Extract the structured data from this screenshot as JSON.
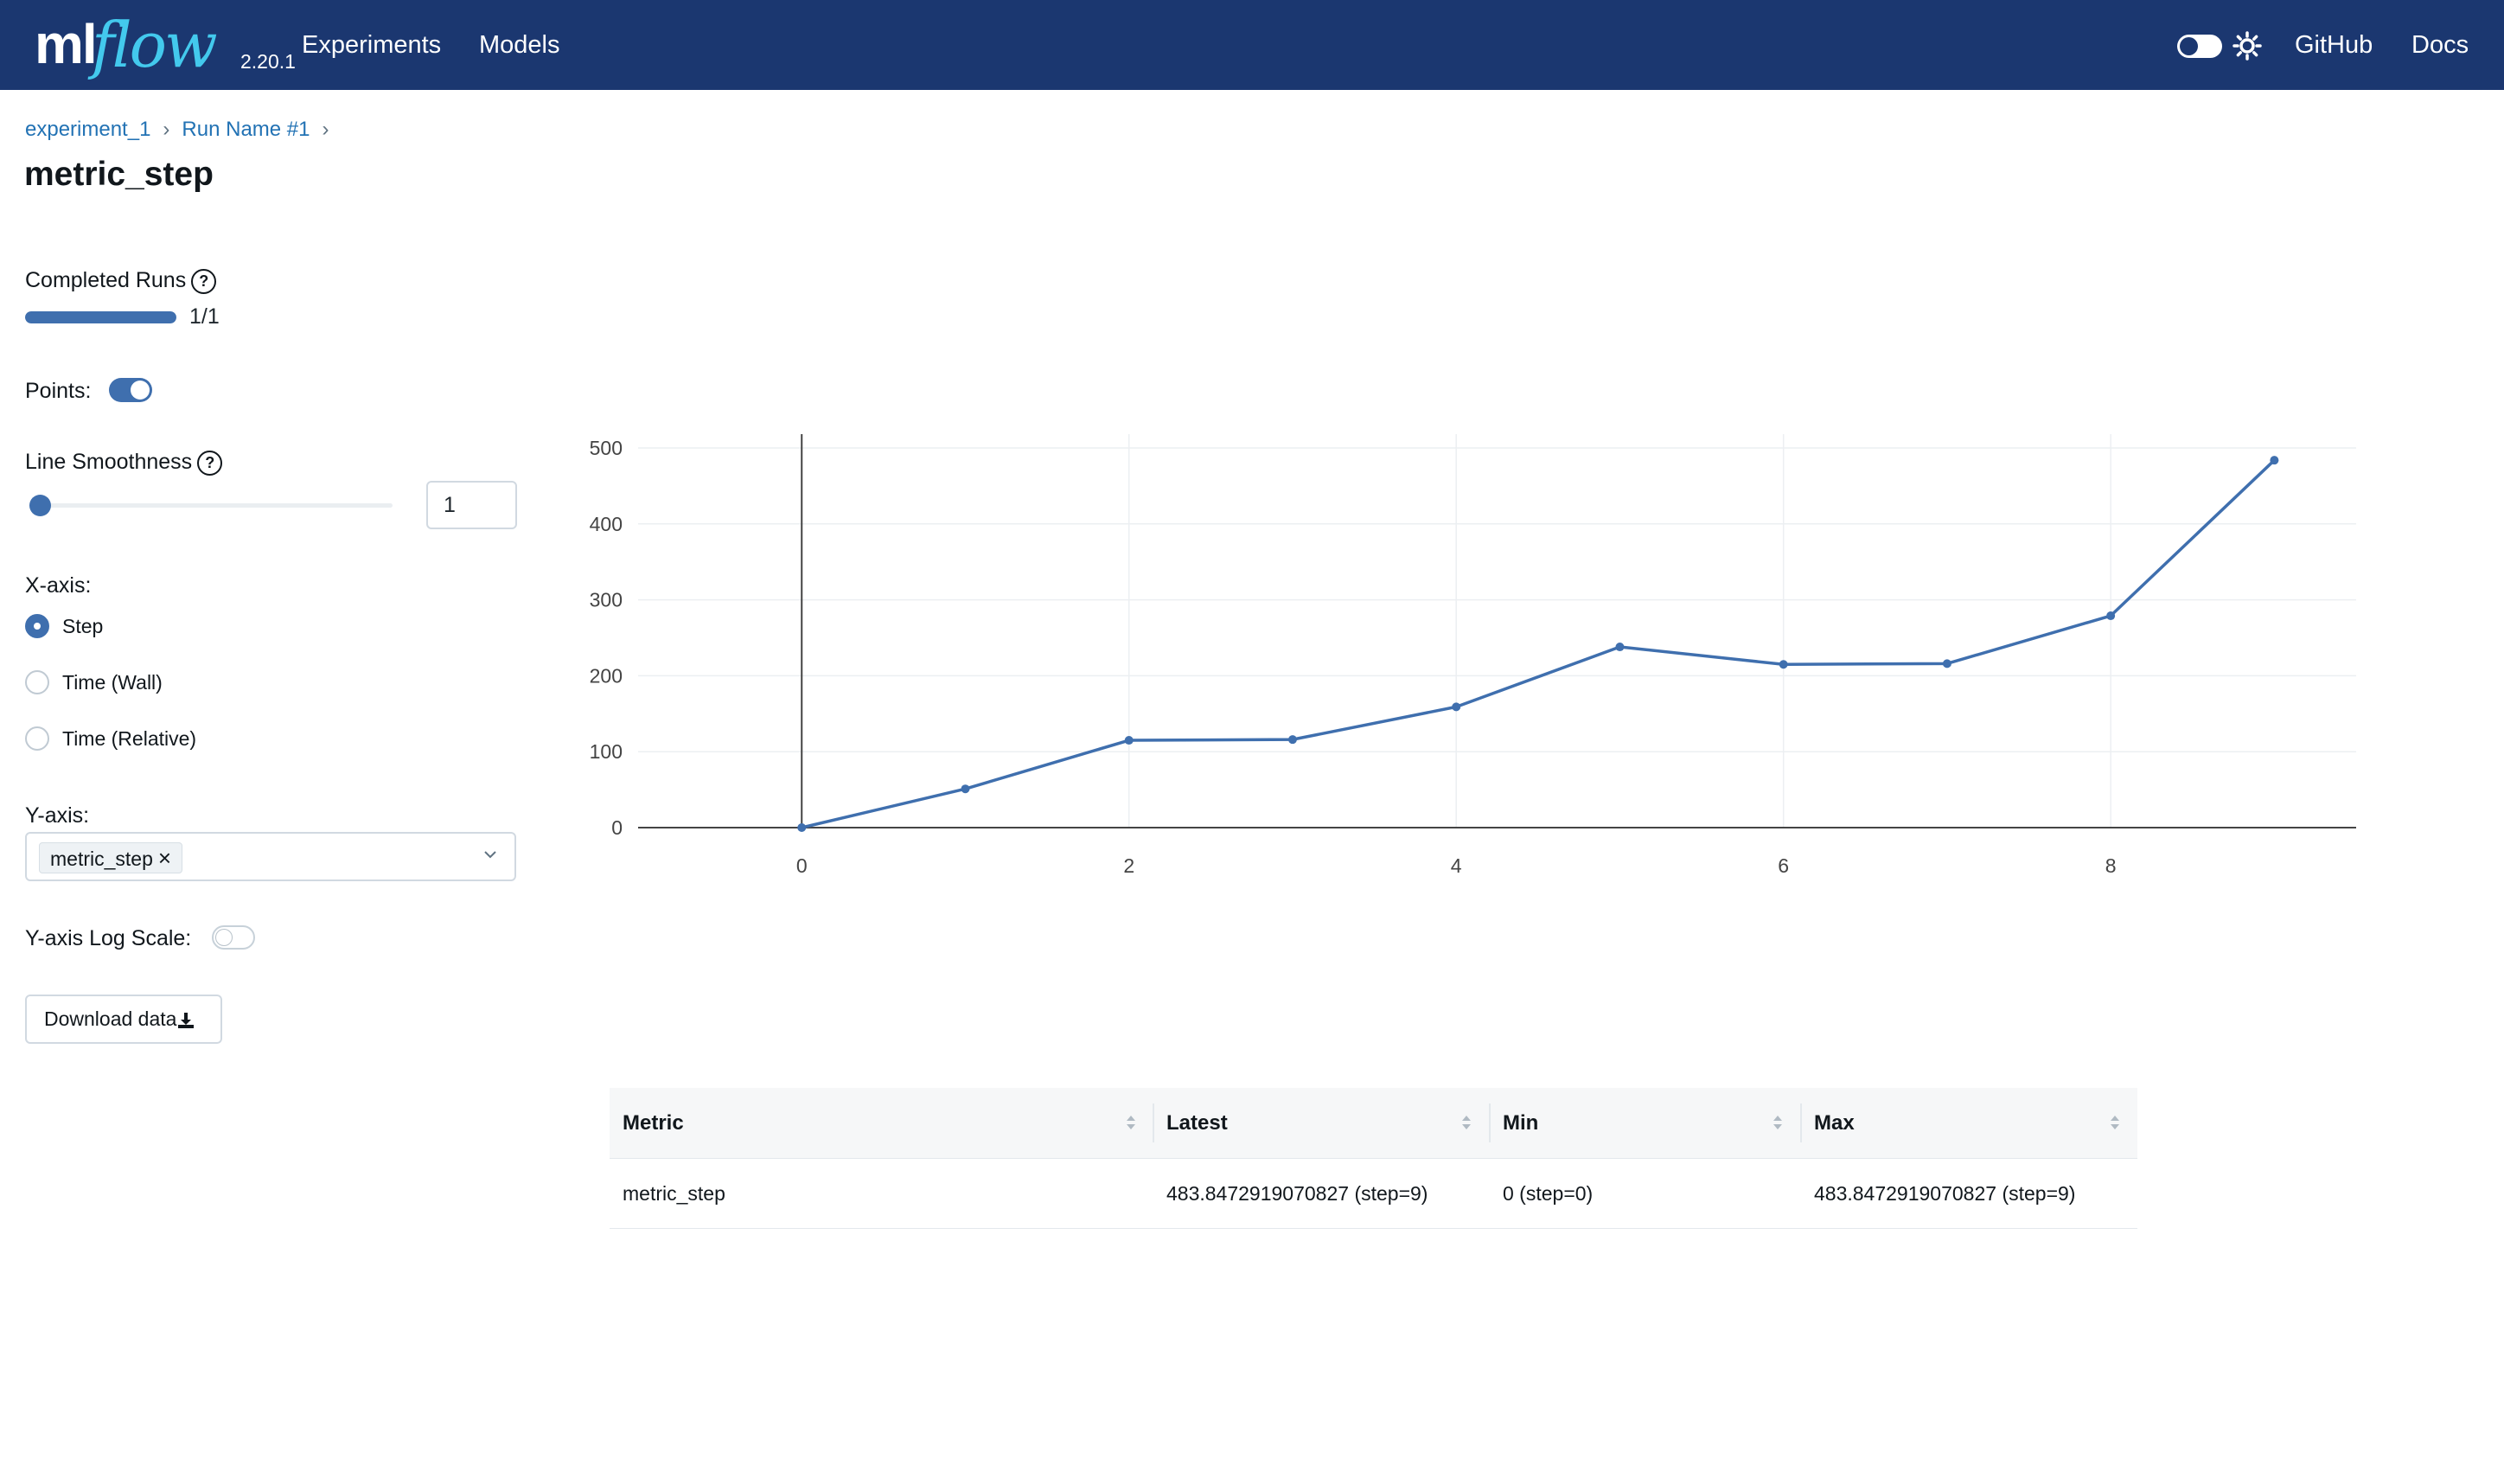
{
  "header": {
    "logo_ml": "ml",
    "logo_flow": "flow",
    "version": "2.20.1",
    "nav": [
      "Experiments",
      "Models"
    ],
    "right_links": [
      "GitHub",
      "Docs"
    ]
  },
  "breadcrumb": [
    "experiment_1",
    "Run Name #1"
  ],
  "page_title": "metric_step",
  "controls": {
    "completed_runs_label": "Completed Runs",
    "completed_runs_value": "1/1",
    "completed_runs_fraction": 1.0,
    "points_label": "Points:",
    "points_enabled": true,
    "line_smoothness_label": "Line Smoothness",
    "line_smoothness_value": "1",
    "xaxis_label": "X-axis:",
    "xaxis_options": [
      "Step",
      "Time (Wall)",
      "Time (Relative)"
    ],
    "xaxis_selected": "Step",
    "yaxis_label": "Y-axis:",
    "yaxis_selected_tag": "metric_step",
    "ylog_label": "Y-axis Log Scale:",
    "ylog_enabled": false,
    "download_label": "Download data"
  },
  "chart_data": {
    "type": "line",
    "x": [
      0,
      1,
      2,
      3,
      4,
      5,
      6,
      7,
      8,
      9
    ],
    "series": [
      {
        "values": [
          0,
          51,
          115,
          116,
          159,
          238,
          215,
          216,
          279,
          483.8472919070827
        ]
      }
    ],
    "xticks": [
      0,
      2,
      4,
      6,
      8
    ],
    "yticks": [
      0,
      100,
      200,
      300,
      400,
      500
    ],
    "xlim": [
      -1.0,
      9.5
    ],
    "ylim": [
      0,
      500
    ],
    "grid": true,
    "color": "#3f6fae"
  },
  "table": {
    "columns": [
      "Metric",
      "Latest",
      "Min",
      "Max"
    ],
    "rows": [
      [
        "metric_step",
        "483.8472919070827 (step=9)",
        "0 (step=0)",
        "483.8472919070827 (step=9)"
      ]
    ]
  },
  "colors": {
    "header_bg": "#1b3770",
    "accent": "#3f6fae",
    "link": "#2272b4"
  }
}
